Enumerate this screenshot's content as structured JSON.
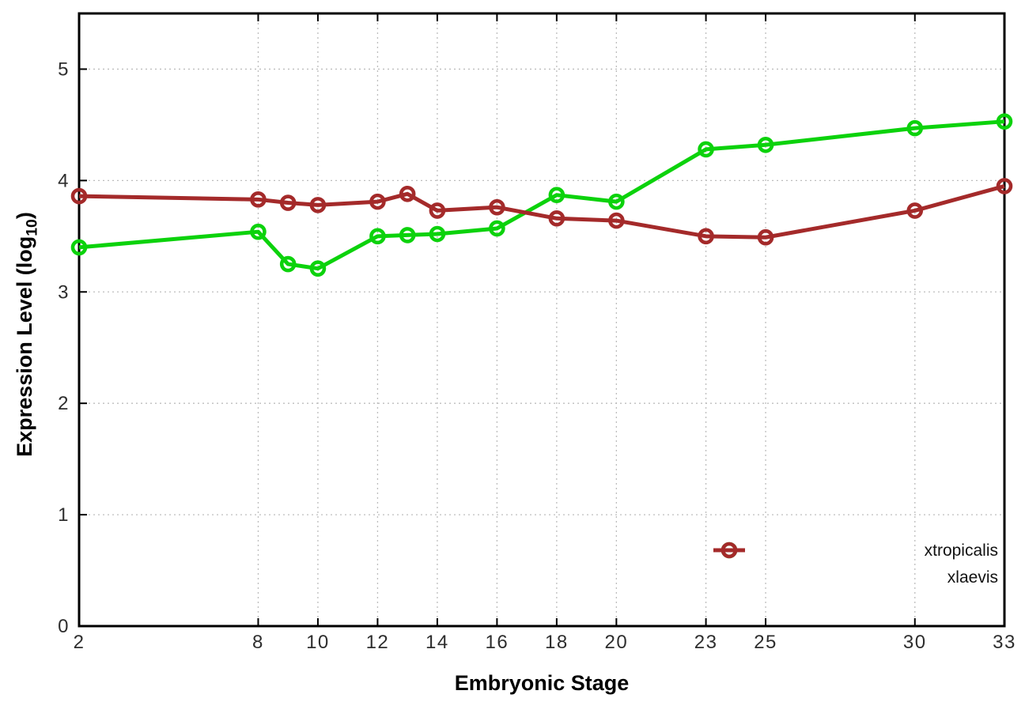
{
  "figure": {
    "xlabel": "Embryonic Stage",
    "ylabel": {
      "prefix": "Expression Level (log",
      "sub": "10",
      "suffix": ")"
    }
  },
  "chart_data": {
    "type": "line",
    "title": "",
    "xlabel": "Embryonic Stage",
    "ylabel": "Expression Level (log10)",
    "xlim": [
      2,
      33
    ],
    "ylim": [
      0,
      5.5
    ],
    "x_ticks": [
      2,
      8,
      10,
      12,
      14,
      16,
      18,
      20,
      23,
      25,
      30,
      33
    ],
    "y_ticks": [
      0,
      1,
      2,
      3,
      4,
      5
    ],
    "grid": true,
    "grid_style": "dotted",
    "legend_position": "inside-bottom-right",
    "x": [
      2,
      8,
      9,
      10,
      12,
      13,
      14,
      16,
      18,
      20,
      23,
      25,
      30,
      33
    ],
    "series": [
      {
        "name": "xtropicalis",
        "color": "#0cd20c",
        "marker": "open-circle",
        "values": [
          3.4,
          3.54,
          3.25,
          3.21,
          3.5,
          3.51,
          3.52,
          3.57,
          3.87,
          3.81,
          4.28,
          4.32,
          4.47,
          4.53
        ]
      },
      {
        "name": "xlaevis",
        "color": "#a42a2a",
        "marker": "open-circle",
        "values": [
          3.86,
          3.83,
          3.8,
          3.78,
          3.81,
          3.88,
          3.73,
          3.76,
          3.66,
          3.64,
          3.5,
          3.49,
          3.73,
          3.95
        ]
      }
    ],
    "styles": {
      "grid_color": "#bdbdbd",
      "axis_color": "#000000",
      "tick_label_color": "#2e2e2e",
      "line_width": 5,
      "marker_radius": 8,
      "marker_stroke": 4.6
    }
  }
}
